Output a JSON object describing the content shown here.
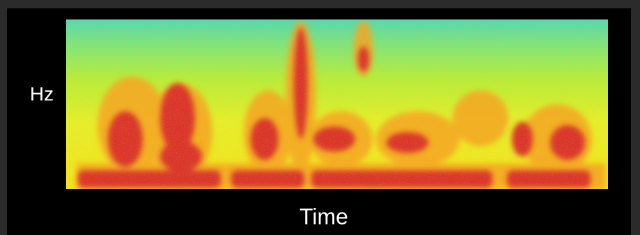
{
  "axis_labels": {
    "y": "Hz",
    "x": "Time"
  }
}
